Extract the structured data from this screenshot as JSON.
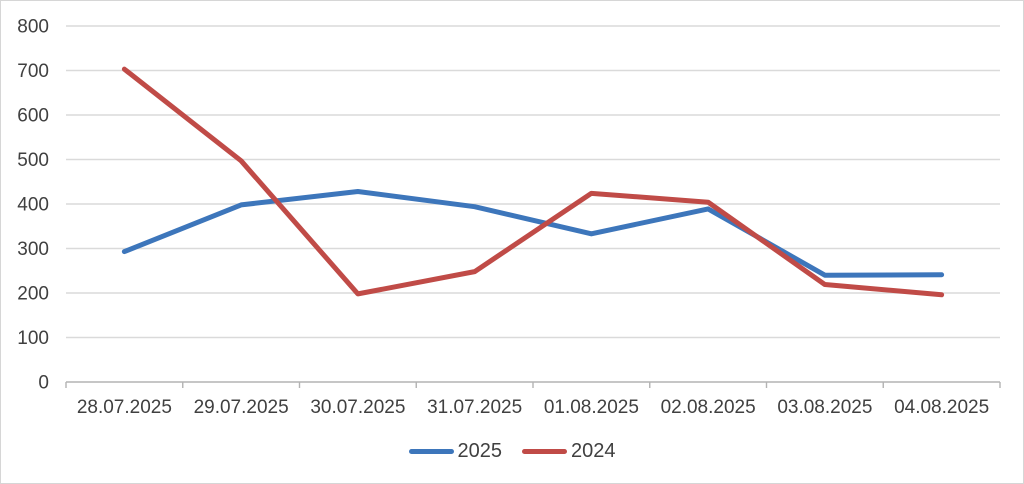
{
  "chart_data": {
    "type": "line",
    "title": "",
    "xlabel": "",
    "ylabel": "",
    "categories": [
      "28.07.2025",
      "29.07.2025",
      "30.07.2025",
      "31.07.2025",
      "01.08.2025",
      "02.08.2025",
      "03.08.2025",
      "04.08.2025"
    ],
    "series": [
      {
        "name": "2025",
        "color": "#3d76bb",
        "values": [
          293,
          398,
          428,
          394,
          333,
          389,
          240,
          241
        ]
      },
      {
        "name": "2024",
        "color": "#c04b47",
        "values": [
          703,
          497,
          198,
          248,
          424,
          404,
          219,
          196
        ]
      }
    ],
    "ylim": [
      0,
      800
    ],
    "ytick_step": 100,
    "ytick_labels": [
      "0",
      "100",
      "200",
      "300",
      "400",
      "500",
      "600",
      "700",
      "800"
    ],
    "grid": true,
    "legend_position": "bottom"
  },
  "colors": {
    "background": "#ffffff",
    "border": "#d6d6d6",
    "gridline": "#dadada",
    "axis_line": "#b3b3b3",
    "tick_mark": "#b3b3b3",
    "label_text": "#404040"
  }
}
